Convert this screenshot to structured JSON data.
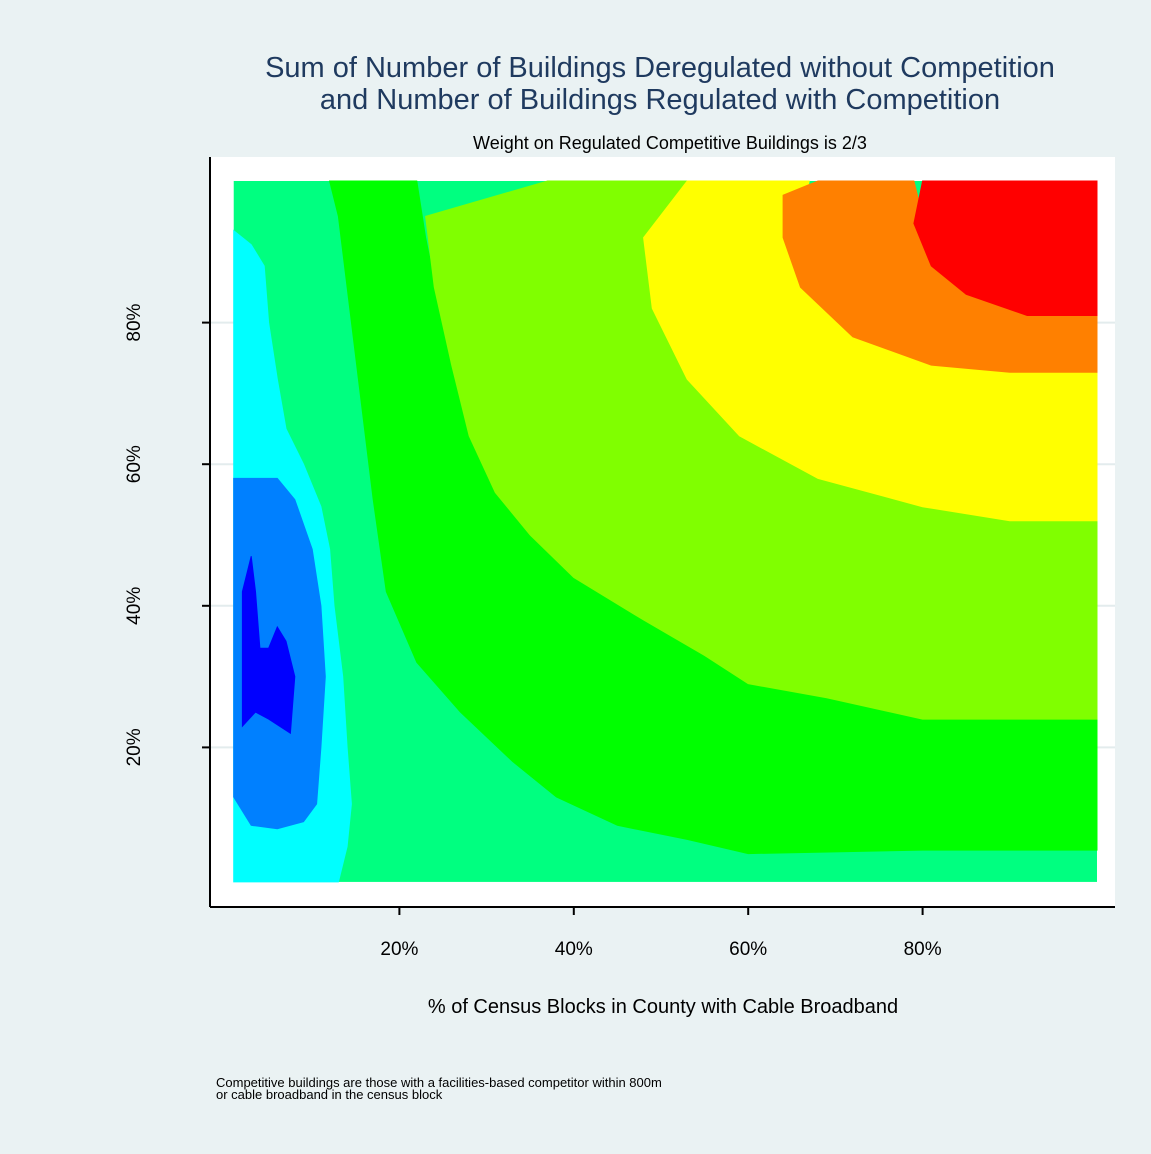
{
  "title_line1": "Sum of Number of Buildings Deregulated without Competition",
  "title_line2": "and Number of Buildings Regulated with Competition",
  "subtitle": "Weight on Regulated Competitive Buildings is 2/3",
  "xlabel": "% of Census Blocks in County with Cable Broadband",
  "note": "Competitive buildings are those with a facilities-based competitor within 800m\nor cable broadband in the census block",
  "chart_data": {
    "type": "heatmap",
    "title": "Sum of Number of Buildings Deregulated without Competition and Number of Buildings Regulated with Competition",
    "subtitle": "Weight on Regulated Competitive Buildings is 2/3",
    "xlabel": "% of Census Blocks in County with Cable Broadband",
    "ylabel": "",
    "xlim": [
      0,
      100
    ],
    "ylim": [
      0,
      100
    ],
    "x_ticks": [
      "20%",
      "40%",
      "60%",
      "80%"
    ],
    "y_ticks": [
      "20%",
      "40%",
      "60%",
      "80%"
    ],
    "grid": true,
    "colors": [
      "#0000ff",
      "#0080ff",
      "#00ffff",
      "#00ff80",
      "#00ff00",
      "#80ff00",
      "#ffff00",
      "#ff8000",
      "#ff0000"
    ],
    "regions": [
      {
        "level": 1,
        "color": "#0080ff",
        "points": [
          [
            1,
            58
          ],
          [
            6,
            58
          ],
          [
            8,
            55
          ],
          [
            10,
            48
          ],
          [
            11,
            40
          ],
          [
            11.5,
            30
          ],
          [
            11,
            20
          ],
          [
            10.5,
            12
          ],
          [
            9,
            9.5
          ],
          [
            6,
            8.5
          ],
          [
            3,
            9
          ],
          [
            1,
            13
          ]
        ]
      },
      {
        "level": 0,
        "color": "#0000ff",
        "points": [
          [
            2,
            42
          ],
          [
            3,
            47
          ],
          [
            3.5,
            42
          ],
          [
            4,
            34
          ],
          [
            5,
            34
          ],
          [
            6,
            37
          ],
          [
            7,
            35
          ],
          [
            8,
            30
          ],
          [
            7.5,
            22
          ],
          [
            5,
            24
          ],
          [
            3.5,
            25
          ],
          [
            2,
            23
          ]
        ]
      },
      {
        "level": 2,
        "color": "#00ffff",
        "points": [
          [
            1,
            93
          ],
          [
            3,
            91
          ],
          [
            4.5,
            88
          ],
          [
            5,
            80
          ],
          [
            6,
            72
          ],
          [
            7,
            65
          ],
          [
            9,
            60
          ],
          [
            11,
            54
          ],
          [
            12,
            48
          ],
          [
            12.5,
            40
          ],
          [
            13.5,
            30
          ],
          [
            14,
            20
          ],
          [
            14.5,
            12
          ],
          [
            14,
            6
          ],
          [
            13,
            1
          ],
          [
            1,
            1
          ]
        ]
      },
      {
        "level": 4,
        "color": "#00ff00",
        "points": [
          [
            12,
            100
          ],
          [
            22,
            100
          ],
          [
            23,
            92
          ],
          [
            25,
            80
          ],
          [
            27,
            70
          ],
          [
            30,
            62
          ],
          [
            36,
            55
          ],
          [
            45,
            48
          ],
          [
            55,
            42
          ],
          [
            63,
            38
          ],
          [
            72,
            37
          ],
          [
            80,
            36
          ],
          [
            90,
            36
          ],
          [
            100,
            36
          ],
          [
            100,
            5.5
          ],
          [
            80,
            5.5
          ],
          [
            60,
            5
          ],
          [
            53,
            7
          ],
          [
            45,
            9
          ],
          [
            38,
            13
          ],
          [
            33,
            18
          ],
          [
            27,
            25
          ],
          [
            22,
            32
          ],
          [
            18.5,
            42
          ],
          [
            17,
            55
          ],
          [
            16,
            65
          ],
          [
            15,
            75
          ],
          [
            14,
            85
          ],
          [
            13,
            95
          ]
        ]
      },
      {
        "level": 5,
        "color": "#80ff00",
        "points": [
          [
            37,
            100
          ],
          [
            54,
            100
          ],
          [
            54.5,
            90
          ],
          [
            55,
            80
          ],
          [
            59,
            73
          ],
          [
            68,
            66
          ],
          [
            78,
            60
          ],
          [
            88,
            58
          ],
          [
            100,
            57
          ],
          [
            100,
            24
          ],
          [
            90,
            24
          ],
          [
            80,
            24
          ],
          [
            69,
            27
          ],
          [
            60,
            29
          ],
          [
            55,
            33
          ],
          [
            48,
            38
          ],
          [
            40,
            44
          ],
          [
            35,
            50
          ],
          [
            31,
            56
          ],
          [
            28,
            64
          ],
          [
            26,
            74
          ],
          [
            24,
            85
          ],
          [
            23,
            95
          ]
        ]
      },
      {
        "level": 6,
        "color": "#ffff00",
        "points": [
          [
            53,
            100
          ],
          [
            67,
            100
          ],
          [
            66,
            94
          ],
          [
            68,
            86
          ],
          [
            74,
            80
          ],
          [
            81,
            77
          ],
          [
            89,
            76
          ],
          [
            100,
            75
          ],
          [
            100,
            52
          ],
          [
            90,
            52
          ],
          [
            80,
            54
          ],
          [
            68,
            58
          ],
          [
            59,
            64
          ],
          [
            53,
            72
          ],
          [
            49,
            82
          ],
          [
            48,
            92
          ]
        ]
      },
      {
        "level": 7,
        "color": "#ff8000",
        "points": [
          [
            68,
            100
          ],
          [
            79,
            100
          ],
          [
            80,
            95
          ],
          [
            85,
            92
          ],
          [
            91,
            89
          ],
          [
            100,
            88
          ],
          [
            100,
            73
          ],
          [
            90,
            73
          ],
          [
            81,
            74
          ],
          [
            72,
            78
          ],
          [
            66,
            85
          ],
          [
            64,
            92
          ],
          [
            64,
            98
          ]
        ]
      },
      {
        "level": 8,
        "color": "#ff0000",
        "points": [
          [
            80,
            100
          ],
          [
            100,
            100
          ],
          [
            100,
            81
          ],
          [
            92,
            81
          ],
          [
            85,
            84
          ],
          [
            81,
            88
          ],
          [
            79,
            94
          ]
        ]
      }
    ]
  }
}
